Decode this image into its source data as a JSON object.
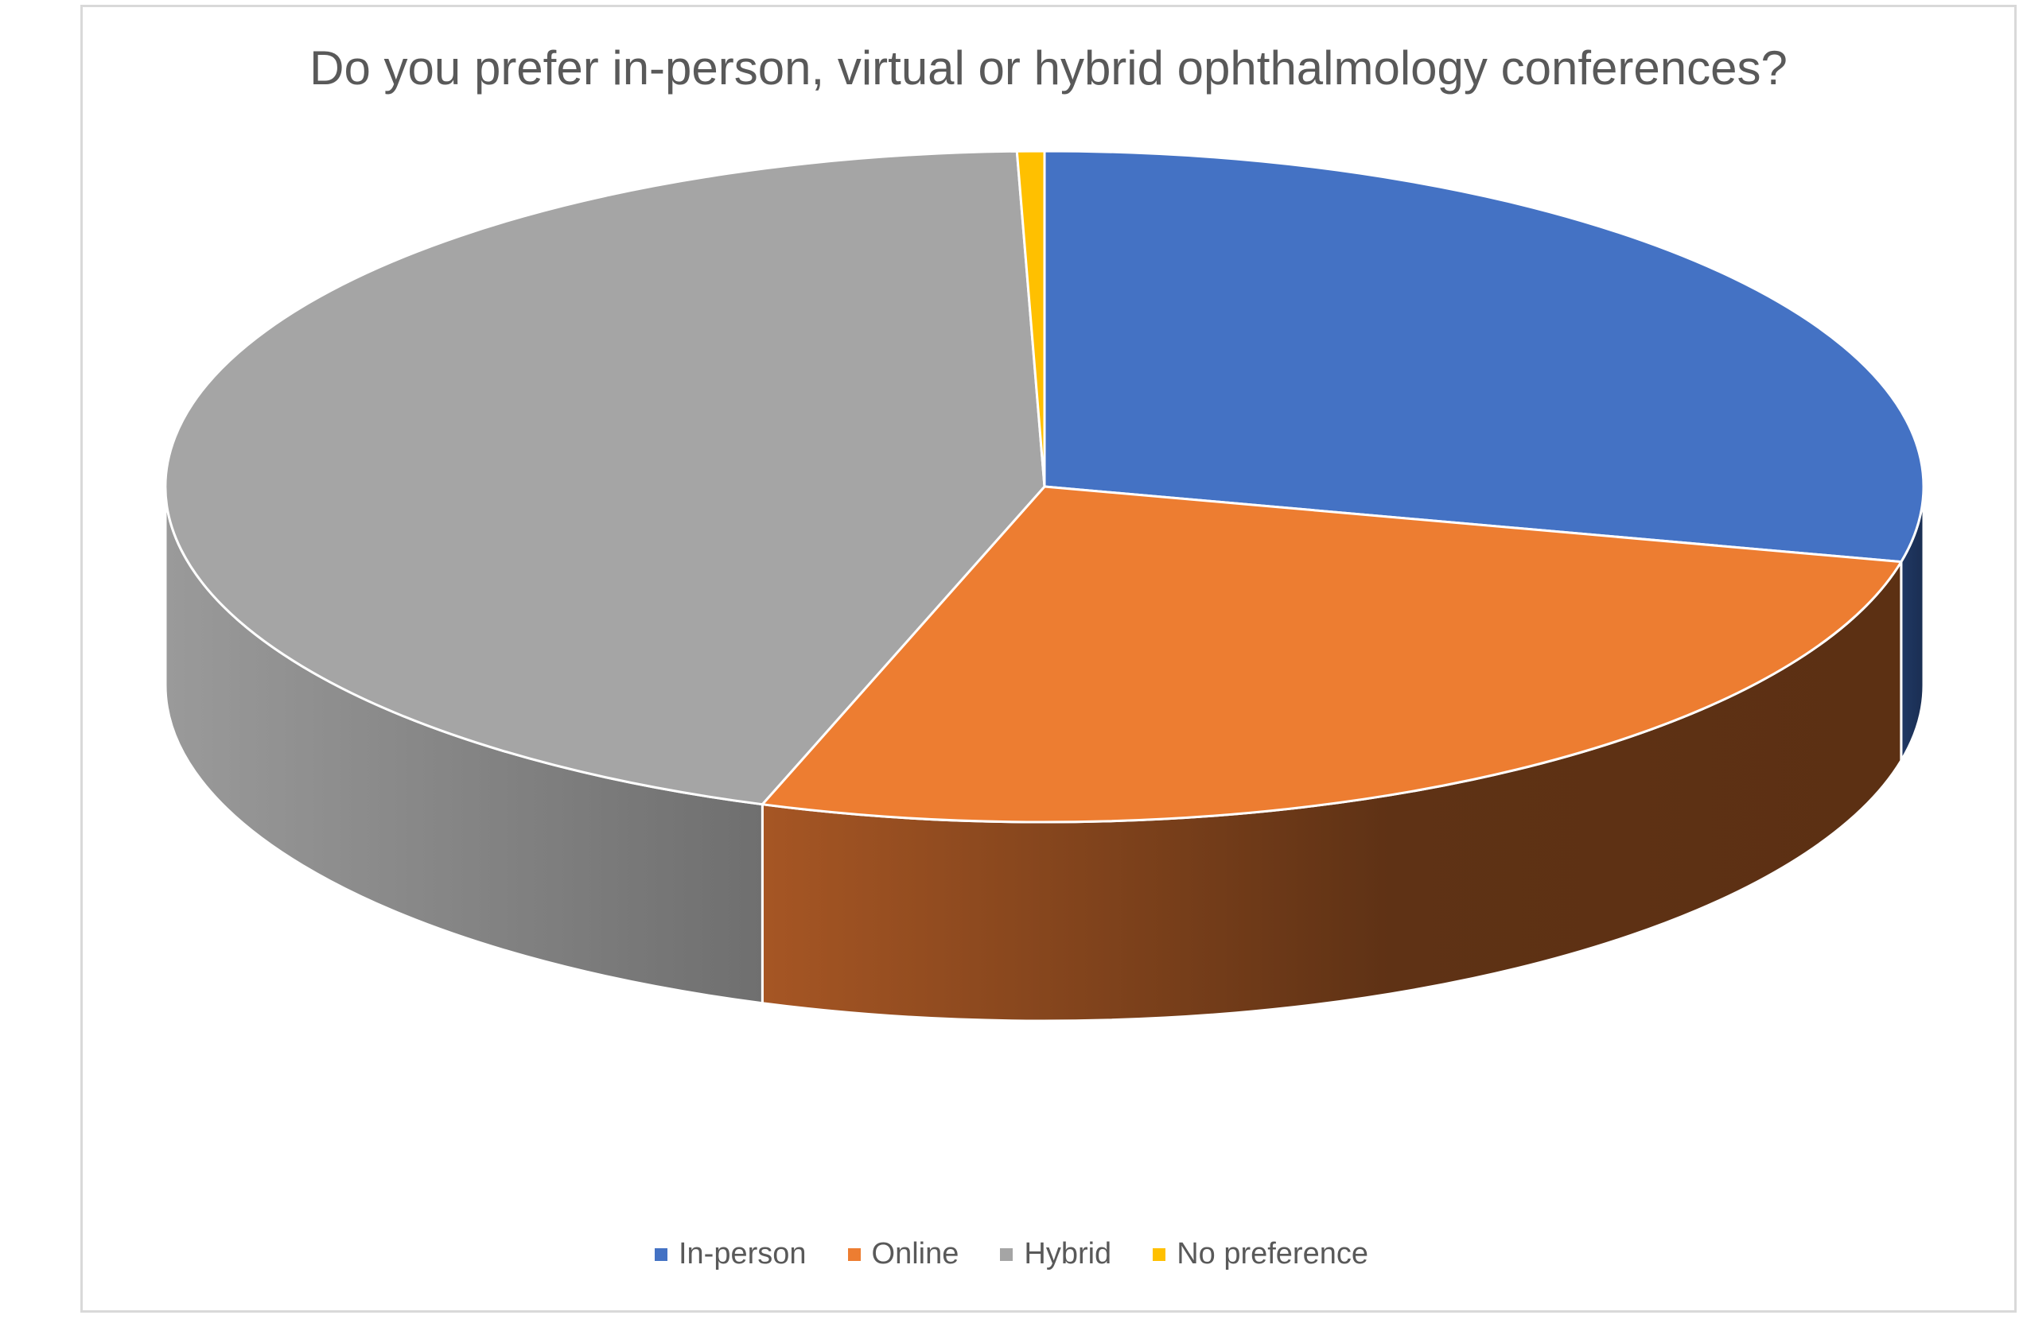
{
  "chart_data": {
    "type": "pie",
    "title": "Do you prefer in-person, virtual or hybrid ophthalmology conferences?",
    "categories": [
      "In-person",
      "Online",
      "Hybrid",
      "No preference"
    ],
    "values": [
      28.6,
      26.6,
      44.3,
      0.5
    ],
    "colors": [
      "#4472c4",
      "#ed7d31",
      "#a5a5a5",
      "#ffc000"
    ],
    "legend_position": "bottom",
    "style": "3d-pie"
  }
}
